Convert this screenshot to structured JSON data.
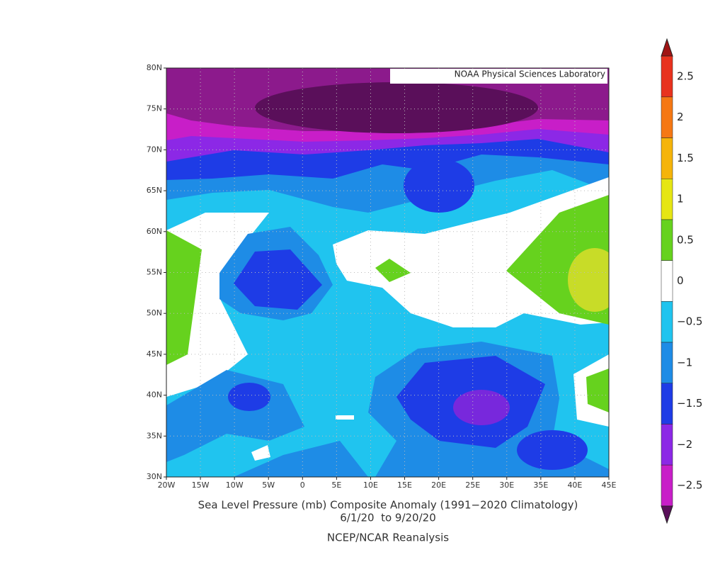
{
  "map": {
    "watermark": "NOAA Physical Sciences Laboratory",
    "title": "Sea Level Pressure (mb) Composite Anomaly (1991−2020 Climatology)",
    "dates": "6/1/20  to 9/20/20",
    "source": "NCEP/NCAR Reanalysis",
    "lon_range": [
      -20,
      45
    ],
    "lat_range": [
      30,
      80
    ],
    "lon_ticks": [
      {
        "value": -20,
        "label": "20W"
      },
      {
        "value": -15,
        "label": "15W"
      },
      {
        "value": -10,
        "label": "10W"
      },
      {
        "value": -5,
        "label": "5W"
      },
      0,
      {
        "value": 5,
        "label": "5E"
      },
      {
        "value": 10,
        "label": "10E"
      },
      {
        "value": 15,
        "label": "15E"
      },
      {
        "value": 20,
        "label": "20E"
      },
      {
        "value": 25,
        "label": "25E"
      },
      {
        "value": 30,
        "label": "30E"
      },
      {
        "value": 35,
        "label": "35E"
      },
      {
        "value": 40,
        "label": "40E"
      },
      {
        "value": 45,
        "label": "45E"
      }
    ],
    "lat_ticks": [
      {
        "value": 30,
        "label": "30N"
      },
      {
        "value": 35,
        "label": "35N"
      },
      {
        "value": 40,
        "label": "40N"
      },
      {
        "value": 45,
        "label": "45N"
      },
      {
        "value": 50,
        "label": "50N"
      },
      {
        "value": 55,
        "label": "55N"
      },
      {
        "value": 60,
        "label": "60N"
      },
      {
        "value": 65,
        "label": "65N"
      },
      {
        "value": 70,
        "label": "70N"
      },
      {
        "value": 75,
        "label": "75N"
      },
      {
        "value": 80,
        "label": "80N"
      }
    ],
    "colorbar": {
      "levels": [
        2.5,
        2,
        1.5,
        1,
        0.5,
        0,
        {
          "value": -0.5,
          "label": "−0.5"
        },
        {
          "value": -1,
          "label": "−1"
        },
        {
          "value": -1.5,
          "label": "−1.5"
        },
        {
          "value": -2,
          "label": "−2"
        },
        {
          "value": -2.5,
          "label": "−2.5"
        }
      ],
      "colors": [
        "#e8321e",
        "#f57814",
        "#f5b40a",
        "#e6e614",
        "#66d21e",
        "#ffffff",
        "#20c4ef",
        "#1e8ce6",
        "#1e3ce6",
        "#8c28e6",
        "#c81ec8"
      ],
      "over_color": "#a01414",
      "under_color": "#5a0f5a"
    }
  }
}
